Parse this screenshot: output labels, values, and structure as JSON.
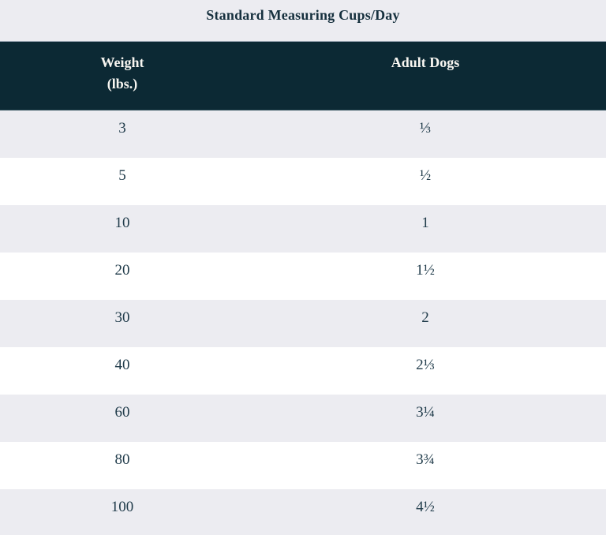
{
  "title": "Standard Measuring Cups/Day",
  "header": {
    "weight_line1": "Weight",
    "weight_line2": "(lbs.)",
    "adult_dogs": "Adult Dogs"
  },
  "chart_data": {
    "type": "table",
    "title": "Standard Measuring Cups/Day",
    "columns": [
      "Weight (lbs.)",
      "Adult Dogs"
    ],
    "rows": [
      [
        "3",
        "⅓"
      ],
      [
        "5",
        "½"
      ],
      [
        "10",
        "1"
      ],
      [
        "20",
        "1½"
      ],
      [
        "30",
        "2"
      ],
      [
        "40",
        "2⅓"
      ],
      [
        "60",
        "3¼"
      ],
      [
        "80",
        "3¾"
      ],
      [
        "100",
        "4½"
      ]
    ],
    "weights_lbs": [
      3,
      5,
      10,
      20,
      30,
      40,
      60,
      80,
      100
    ],
    "cups_per_day": [
      0.333,
      0.5,
      1,
      1.5,
      2,
      2.333,
      3.25,
      3.75,
      4.5
    ],
    "layout": {
      "striped": true,
      "stripe_pattern": "first-row-gray",
      "header_position": "top",
      "grid": false,
      "column_align": "center"
    }
  },
  "colors": {
    "header_bg": "#0c2934",
    "header_text": "#f8f6f1",
    "stripe_bg": "#ececf1",
    "alt_row_bg": "#ffffff",
    "body_text": "#213c4b",
    "title_text": "#16303e"
  }
}
